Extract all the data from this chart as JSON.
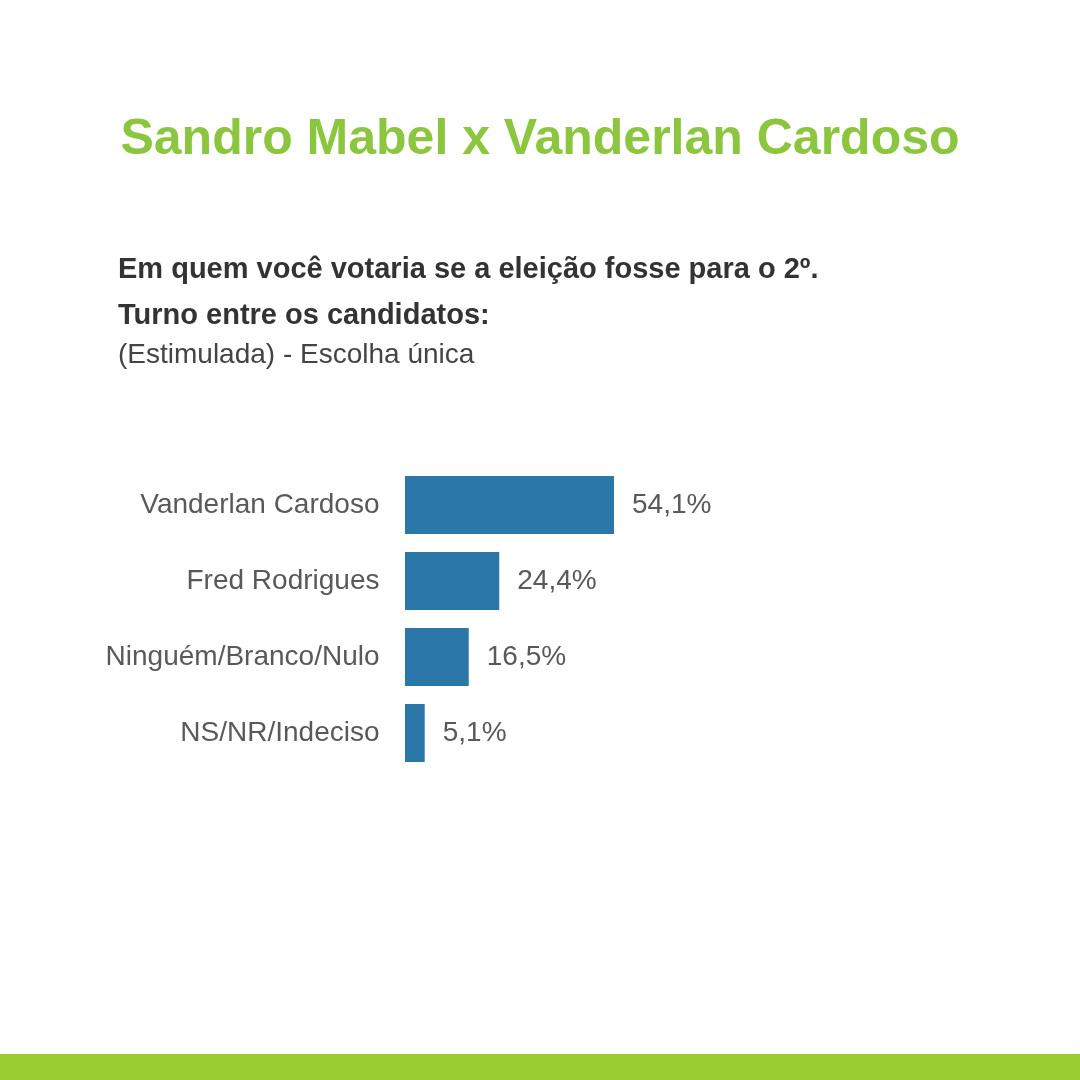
{
  "chart_data": {
    "type": "bar",
    "orientation": "horizontal",
    "title": "Sandro Mabel x Vanderlan Cardoso",
    "subtitle": "Em quem você votaria se a eleição fosse para o 2º. Turno entre os candidatos:",
    "annotations": [
      "(Estimulada) - Escolha única"
    ],
    "categories": [
      "Vanderlan Cardoso",
      "Fred Rodrigues",
      "Ninguém/Branco/Nulo",
      "NS/NR/Indeciso"
    ],
    "values": [
      54.1,
      24.4,
      16.5,
      5.1
    ],
    "value_labels": [
      "54,1%",
      "24,4%",
      "16,5%",
      "5,1%"
    ],
    "color": "#2b77a8"
  }
}
